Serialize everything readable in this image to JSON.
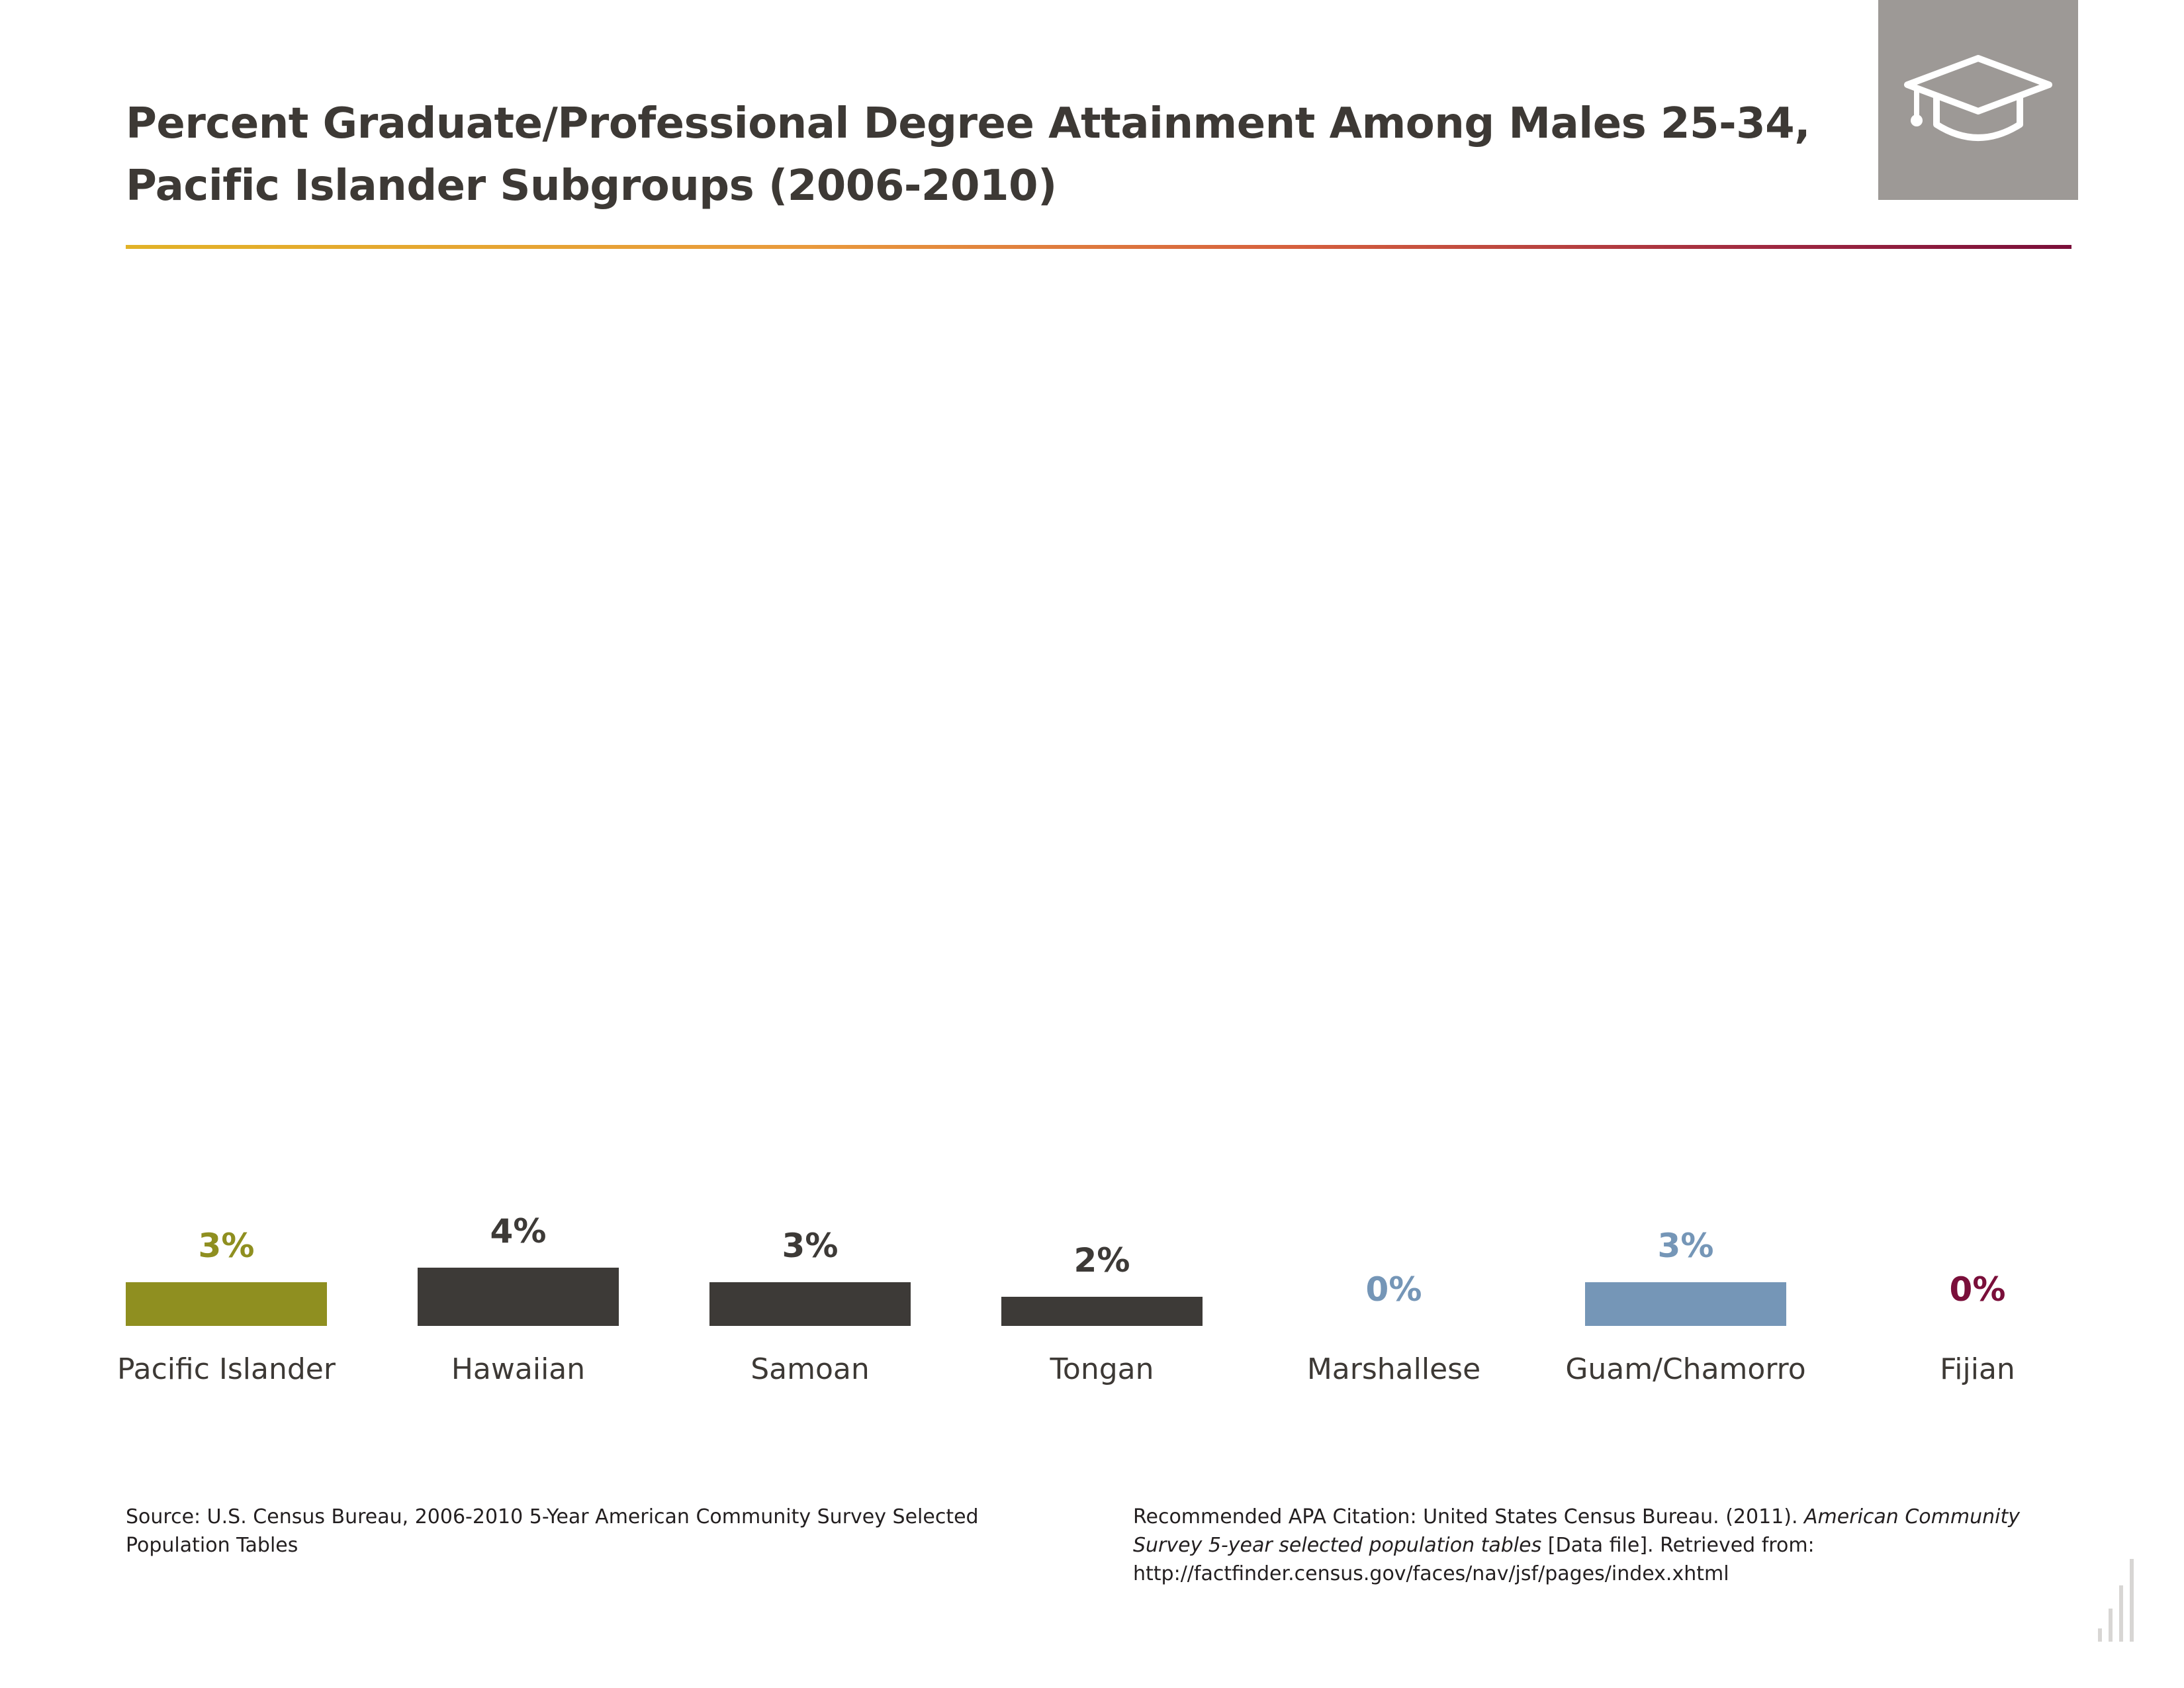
{
  "title": {
    "line1": "Percent Graduate/Professional Degree Attainment Among Males 25-34,",
    "line2": "Pacific Islander Subgroups (2006-2010)"
  },
  "icon": {
    "name": "graduation-cap-icon"
  },
  "chart_data": {
    "type": "bar",
    "title": "Percent Graduate/Professional Degree Attainment Among Males 25-34, Pacific Islander Subgroups (2006-2010)",
    "xlabel": "",
    "ylabel": "",
    "unit": "%",
    "grid": false,
    "legend": "none",
    "categories": [
      "Pacific Islander",
      "Hawaiian",
      "Samoan",
      "Tongan",
      "Marshallese",
      "Guam/Chamorro",
      "Fijian"
    ],
    "values": [
      3,
      4,
      3,
      2,
      0,
      3,
      0
    ],
    "value_labels": [
      "3%",
      "4%",
      "3%",
      "2%",
      "0%",
      "3%",
      "0%"
    ],
    "colors": [
      "#8f8f20",
      "#3d3a37",
      "#3d3a37",
      "#3d3a37",
      "#7596b7",
      "#7596b7",
      "#7a0f3a"
    ],
    "label_colors": [
      "#8f8f20",
      "#3d3a37",
      "#3d3a37",
      "#3d3a37",
      "#7596b7",
      "#7596b7",
      "#7a0f3a"
    ],
    "ylim": [
      0,
      100
    ]
  },
  "source": {
    "text": "Source: U.S. Census Bureau, 2006-2010 5-Year American Community Survey Selected Population Tables"
  },
  "citation": {
    "prefix": "Recommended APA Citation: United States Census Bureau. (2011). ",
    "italic": "American Community Survey 5-year selected population tables",
    "suffix": " [Data file]. Retrieved from: http://factfinder.census.gov/faces/nav/jsf/pages/index.xhtml"
  }
}
